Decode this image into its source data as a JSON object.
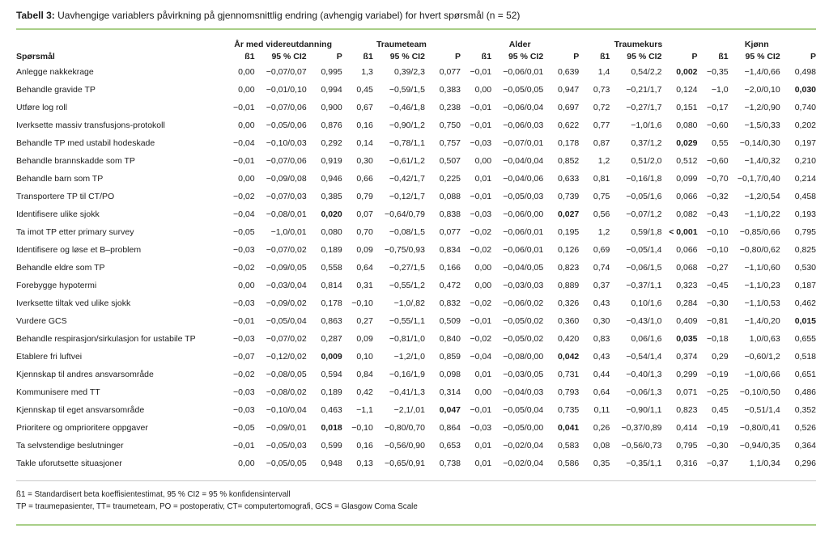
{
  "colors": {
    "accent_green": "#a9cf88",
    "divider_gray": "#c9c9c9",
    "text": "#1c1c1c"
  },
  "title": {
    "label": "Tabell 3:",
    "text": " Uavhengige variablers påvirkning på gjennomsnittlig endring (avhengig variabel) for hvert spørsmål (n = 52)"
  },
  "table": {
    "question_header": "Spørsmål",
    "col_groups": [
      {
        "label": "År med videreutdanning"
      },
      {
        "label": "Traumeteam"
      },
      {
        "label": "Alder"
      },
      {
        "label": "Traumekurs"
      },
      {
        "label": "Kjønn"
      }
    ],
    "sub_headers": [
      "ß1",
      "95 % CI2",
      "P"
    ],
    "rows": [
      {
        "question": "Anlegge nakkekrage",
        "cells": [
          "0,00",
          "−0,07/0,07",
          "0,995",
          "1,3",
          "0,39/2,3",
          "0,077",
          "−0,01",
          "−0,06/0,01",
          "0,639",
          "1,4",
          "0,54/2,2",
          "0,002",
          "−0,35",
          "−1,4/0,66",
          "0,498"
        ],
        "bold": [
          11
        ]
      },
      {
        "question": "Behandle gravide TP",
        "cells": [
          "0,00",
          "−0,01/0,10",
          "0,994",
          "0,45",
          "−0,59/1,5",
          "0,383",
          "0,00",
          "−0,05/0,05",
          "0,947",
          "0,73",
          "−0,21/1,7",
          "0,124",
          "−1,0",
          "−2,0/0,10",
          "0,030"
        ],
        "bold": [
          14
        ]
      },
      {
        "question": "Utføre log roll",
        "cells": [
          "−0,01",
          "−0,07/0,06",
          "0,900",
          "0,67",
          "−0,46/1,8",
          "0,238",
          "−0,01",
          "−0,06/0,04",
          "0,697",
          "0,72",
          "−0,27/1,7",
          "0,151",
          "−0,17",
          "−1,2/0,90",
          "0,740"
        ],
        "bold": []
      },
      {
        "question": "Iverksette massiv transfusjons-protokoll",
        "cells": [
          "0,00",
          "−0,05/0,06",
          "0,876",
          "0,16",
          "−0,90/1,2",
          "0,750",
          "−0,01",
          "−0,06/0,03",
          "0,622",
          "0,77",
          "−1,0/1,6",
          "0,080",
          "−0,60",
          "−1,5/0,33",
          "0,202"
        ],
        "bold": []
      },
      {
        "question": "Behandle TP med ustabil hodeskade",
        "cells": [
          "−0,04",
          "−0,10/0,03",
          "0,292",
          "0,14",
          "−0,78/1,1",
          "0,757",
          "−0,03",
          "−0,07/0,01",
          "0,178",
          "0,87",
          "0,37/1,2",
          "0,029",
          "0,55",
          "−0,14/0,30",
          "0,197"
        ],
        "bold": [
          11
        ]
      },
      {
        "question": "Behandle brannskadde som TP",
        "cells": [
          "−0,01",
          "−0,07/0,06",
          "0,919",
          "0,30",
          "−0,61/1,2",
          "0,507",
          "0,00",
          "−0,04/0,04",
          "0,852",
          "1,2",
          "0,51/2,0",
          "0,512",
          "−0,60",
          "−1,4/0,32",
          "0,210"
        ],
        "bold": []
      },
      {
        "question": "Behandle barn som TP",
        "cells": [
          "0,00",
          "−0,09/0,08",
          "0,946",
          "0,66",
          "−0,42/1,7",
          "0,225",
          "0,01",
          "−0,04/0,06",
          "0,633",
          "0,81",
          "−0,16/1,8",
          "0,099",
          "−0,70",
          "−0,1,7/0,40",
          "0,214"
        ],
        "bold": []
      },
      {
        "question": "Transportere TP til CT/PO",
        "cells": [
          "−0,02",
          "−0,07/0,03",
          "0,385",
          "0,79",
          "−0,12/1,7",
          "0,088",
          "−0,01",
          "−0,05/0,03",
          "0,739",
          "0,75",
          "−0,05/1,6",
          "0,066",
          "−0,32",
          "−1,2/0,54",
          "0,458"
        ],
        "bold": []
      },
      {
        "question": "Identifisere ulike sjokk",
        "cells": [
          "−0,04",
          "−0,08/0,01",
          "0,020",
          "0,07",
          "−0,64/0,79",
          "0,838",
          "−0,03",
          "−0,06/0,00",
          "0,027",
          "0,56",
          "−0,07/1,2",
          "0,082",
          "−0,43",
          "−1,1/0,22",
          "0,193"
        ],
        "bold": [
          2,
          8
        ]
      },
      {
        "question": "Ta imot TP etter primary survey",
        "cells": [
          "−0,05",
          "−1,0/0,01",
          "0,080",
          "0,70",
          "−0,08/1,5",
          "0,077",
          "−0,02",
          "−0,06/0,01",
          "0,195",
          "1,2",
          "0,59/1,8",
          "< 0,001",
          "−0,10",
          "−0,85/0,66",
          "0,795"
        ],
        "bold": [
          11
        ]
      },
      {
        "question": "Identifisere og løse et B–problem",
        "cells": [
          "−0,03",
          "−0,07/0,02",
          "0,189",
          "0,09",
          "−0,75/0,93",
          "0,834",
          "−0,02",
          "−0,06/0,01",
          "0,126",
          "0,69",
          "−0,05/1,4",
          "0,066",
          "−0,10",
          "−0,80/0,62",
          "0,825"
        ],
        "bold": []
      },
      {
        "question": "Behandle eldre som TP",
        "cells": [
          "−0,02",
          "−0,09/0,05",
          "0,558",
          "0,64",
          "−0,27/1,5",
          "0,166",
          "0,00",
          "−0,04/0,05",
          "0,823",
          "0,74",
          "−0,06/1,5",
          "0,068",
          "−0,27",
          "−1,1/0,60",
          "0,530"
        ],
        "bold": []
      },
      {
        "question": "Forebygge hypotermi",
        "cells": [
          "0,00",
          "−0,03/0,04",
          "0,814",
          "0,31",
          "−0,55/1,2",
          "0,472",
          "0,00",
          "−0,03/0,03",
          "0,889",
          "0,37",
          "−0,37/1,1",
          "0,323",
          "−0,45",
          "−1,1/0,23",
          "0,187"
        ],
        "bold": []
      },
      {
        "question": "Iverksette tiltak ved ulike sjokk",
        "cells": [
          "−0,03",
          "−0,09/0,02",
          "0,178",
          "−0,10",
          "−1,0/,82",
          "0,832",
          "−0,02",
          "−0,06/0,02",
          "0,326",
          "0,43",
          "0,10/1,6",
          "0,284",
          "−0,30",
          "−1,1/0,53",
          "0,462"
        ],
        "bold": []
      },
      {
        "question": "Vurdere GCS",
        "cells": [
          "−0,01",
          "−0,05/0,04",
          "0,863",
          "0,27",
          "−0,55/1,1",
          "0,509",
          "−0,01",
          "−0,05/0,02",
          "0,360",
          "0,30",
          "−0,43/1,0",
          "0,409",
          "−0,81",
          "−1,4/0,20",
          "0,015"
        ],
        "bold": [
          14
        ]
      },
      {
        "question": "Behandle respirasjon/sirkulasjon for ustabile TP",
        "cells": [
          "−0,03",
          "−0,07/0,02",
          "0,287",
          "0,09",
          "−0,81/1,0",
          "0,840",
          "−0,02",
          "−0,05/0,02",
          "0,420",
          "0,83",
          "0,06/1,6",
          "0,035",
          "−0,18",
          "1,0/0,63",
          "0,655"
        ],
        "bold": [
          11
        ]
      },
      {
        "question": "Etablere fri luftvei",
        "cells": [
          "−0,07",
          "−0,12/0,02",
          "0,009",
          "0,10",
          "−1,2/1,0",
          "0,859",
          "−0,04",
          "−0,08/0,00",
          "0,042",
          "0,43",
          "−0,54/1,4",
          "0,374",
          "0,29",
          "−0,60/1,2",
          "0,518"
        ],
        "bold": [
          2,
          8
        ]
      },
      {
        "question": "Kjennskap til andres ansvarsområde",
        "cells": [
          "−0,02",
          "−0,08/0,05",
          "0,594",
          "0,84",
          "−0,16/1,9",
          "0,098",
          "0,01",
          "−0,03/0,05",
          "0,731",
          "0,44",
          "−0,40/1,3",
          "0,299",
          "−0,19",
          "−1,0/0,66",
          "0,651"
        ],
        "bold": []
      },
      {
        "question": "Kommunisere med TT",
        "cells": [
          "−0,03",
          "−0,08/0,02",
          "0,189",
          "0,42",
          "−0,41/1,3",
          "0,314",
          "0,00",
          "−0,04/0,03",
          "0,793",
          "0,64",
          "−0,06/1,3",
          "0,071",
          "−0,25",
          "−0,10/0,50",
          "0,486"
        ],
        "bold": []
      },
      {
        "question": "Kjennskap til eget ansvarsområde",
        "cells": [
          "−0,03",
          "−0,10/0,04",
          "0,463",
          "−1,1",
          "−2,1/,01",
          "0,047",
          "−0,01",
          "−0,05/0,04",
          "0,735",
          "0,11",
          "−0,90/1,1",
          "0,823",
          "0,45",
          "−0,51/1,4",
          "0,352"
        ],
        "bold": [
          5
        ]
      },
      {
        "question": "Prioritere og omprioritere oppgaver",
        "cells": [
          "−0,05",
          "−0,09/0,01",
          "0,018",
          "−0,10",
          "−0,80/0,70",
          "0,864",
          "−0,03",
          "−0,05/0,00",
          "0,041",
          "0,26",
          "−0,37/0,89",
          "0,414",
          "−0,19",
          "−0,80/0,41",
          "0,526"
        ],
        "bold": [
          2,
          8
        ]
      },
      {
        "question": "Ta selvstendige beslutninger",
        "cells": [
          "−0,01",
          "−0,05/0,03",
          "0,599",
          "0,16",
          "−0,56/0,90",
          "0,653",
          "0,01",
          "−0,02/0,04",
          "0,583",
          "0,08",
          "−0,56/0,73",
          "0,795",
          "−0,30",
          "−0,94/0,35",
          "0,364"
        ],
        "bold": []
      },
      {
        "question": "Takle uforutsette situasjoner",
        "cells": [
          "0,00",
          "−0,05/0,05",
          "0,948",
          "0,13",
          "−0,65/0,91",
          "0,738",
          "0,01",
          "−0,02/0,04",
          "0,586",
          "0,35",
          "−0,35/1,1",
          "0,316",
          "−0,37",
          "1,1/0,34",
          "0,296"
        ],
        "bold": []
      }
    ]
  },
  "footnotes": [
    "ß1 = Standardisert beta koeffisientestimat, 95 % CI2 = 95 % konfidensintervall",
    "TP = traumepasienter, TT= traumeteam, PO = postoperativ, CT= computertomografi, GCS = Glasgow Coma Scale"
  ]
}
